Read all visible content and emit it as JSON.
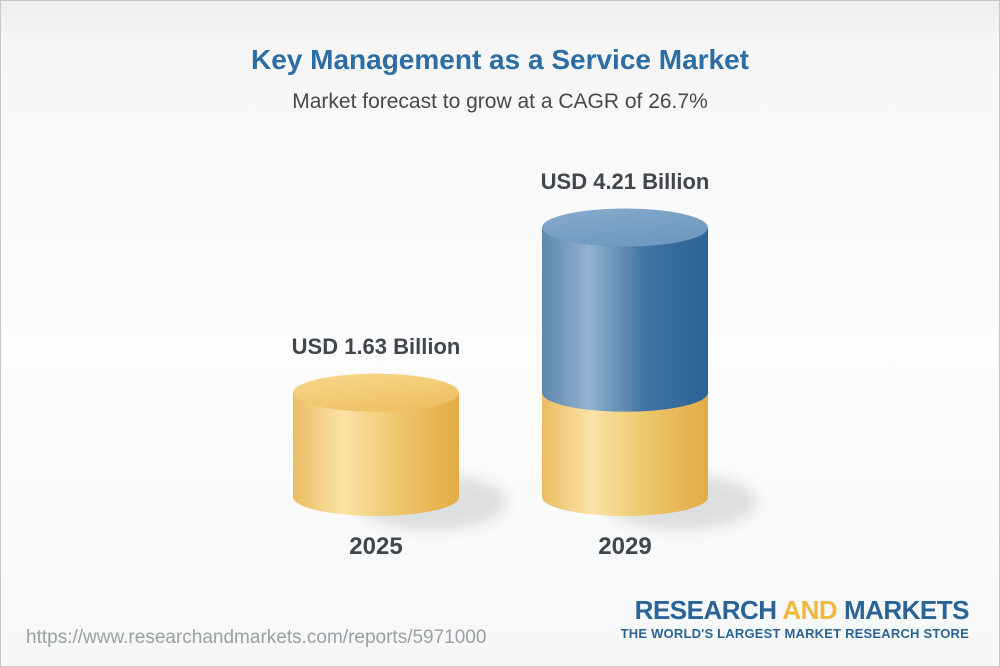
{
  "header": {
    "title": "Key Management as a Service Market",
    "subtitle": "Market forecast to grow at a CAGR of 26.7%"
  },
  "footer": {
    "url": "https://www.researchandmarkets.com/reports/5971000",
    "logo": {
      "word1": "RESEARCH",
      "word2": "AND",
      "word3": "MARKETS",
      "tagline": "THE WORLD'S LARGEST MARKET RESEARCH STORE"
    }
  },
  "colors": {
    "title_blue": "#2C6DA4",
    "text_dark": "#3F464D",
    "url_gray": "#9BA0A4",
    "logo_blue": "#2A6496",
    "logo_gold": "#EFB93F",
    "background_top": "#EEEEEE",
    "background_bottom": "#F6F7F8",
    "bar_yellow_body": [
      "#EBBC62",
      "#FAE3A6",
      "#EFC86F",
      "#E3AB45"
    ],
    "bar_yellow_cap": [
      "#F8D88E",
      "#EEC163"
    ],
    "bar_blue_body": [
      "#5E88AD",
      "#92B2CE",
      "#3F74A4",
      "#2D6394"
    ],
    "bar_blue_cap": [
      "#85ABCC",
      "#7099BF"
    ]
  },
  "chart_data": {
    "type": "bar",
    "subtype": "3d-cylinder-stacked",
    "title": "Key Management as a Service Market",
    "subtitle": "Market forecast to grow at a CAGR of 26.7%",
    "cagr_percent": 26.7,
    "unit": "USD Billion",
    "categories": [
      "2025",
      "2029"
    ],
    "values": [
      1.63,
      4.21
    ],
    "grid": false,
    "axes_visible": false,
    "legend": "none",
    "bars": [
      {
        "category": "2025",
        "label": "USD 1.63 Billion",
        "total": 1.63,
        "segments": [
          {
            "name": "market-size-2025",
            "value": 1.63,
            "color": "yellow"
          }
        ]
      },
      {
        "category": "2029",
        "label": "USD 4.21 Billion",
        "total": 4.21,
        "segments": [
          {
            "name": "base-2025-level",
            "value": 1.63,
            "color": "yellow"
          },
          {
            "name": "growth-2025-to-2029",
            "value": 2.58,
            "color": "blue"
          }
        ]
      }
    ]
  }
}
